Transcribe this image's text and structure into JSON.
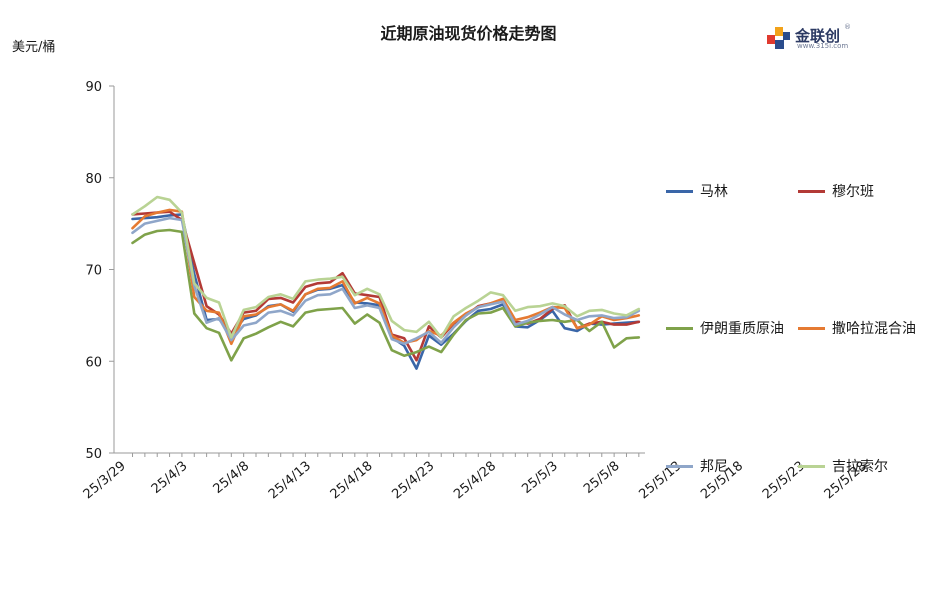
{
  "title": "近期原油现货价格走势图",
  "unit_label": "美元/桶",
  "logo": {
    "brand": "金联创",
    "site": "www.315i.com",
    "reg": "®"
  },
  "chart_data": {
    "type": "line",
    "title": "近期原油现货价格走势图",
    "ylabel": "美元/桶",
    "ylim": [
      50,
      90
    ],
    "yticks": [
      50,
      60,
      70,
      80,
      90
    ],
    "grid": false,
    "legend": "right",
    "x": [
      "25/3/28",
      "25/3/31",
      "25/4/1",
      "25/4/2",
      "25/4/3",
      "25/4/4",
      "25/4/7",
      "25/4/8",
      "25/4/9",
      "25/4/10",
      "25/4/11",
      "25/4/14",
      "25/4/15",
      "25/4/16",
      "25/4/17",
      "25/4/21",
      "25/4/22",
      "25/4/23",
      "25/4/24",
      "25/4/25",
      "25/4/28",
      "25/4/29",
      "25/4/30",
      "25/5/2",
      "25/5/5",
      "25/5/6",
      "25/5/7",
      "25/5/8",
      "25/5/9",
      "25/5/12",
      "25/5/13",
      "25/5/14",
      "25/5/15",
      "25/5/16",
      "25/5/19",
      "25/5/20",
      "25/5/21",
      "25/5/22",
      "25/5/23",
      "25/5/26",
      "25/5/27",
      "25/5/28"
    ],
    "xtick_labels": [
      {
        "label": "25/3/29",
        "pos": -1
      },
      {
        "label": "25/4/3",
        "pos": 4
      },
      {
        "label": "25/4/8",
        "pos": 9
      },
      {
        "label": "25/4/13",
        "pos": 14
      },
      {
        "label": "25/4/18",
        "pos": 19
      },
      {
        "label": "25/4/23",
        "pos": 24
      },
      {
        "label": "25/4/28",
        "pos": 29
      },
      {
        "label": "25/5/3",
        "pos": 34
      },
      {
        "label": "25/5/8",
        "pos": 39
      },
      {
        "label": "25/5/13",
        "pos": 44
      },
      {
        "label": "25/5/18",
        "pos": 49
      },
      {
        "label": "25/5/23",
        "pos": 54
      },
      {
        "label": "25/5/28",
        "pos": 59
      }
    ],
    "series": [
      {
        "name": "马林",
        "color": "#3a66a8",
        "values": [
          75.5,
          75.6,
          75.7,
          75.9,
          76.0,
          69.5,
          64.5,
          64.6,
          62.9,
          64.6,
          65.0,
          66.0,
          66.2,
          65.4,
          67.3,
          67.8,
          67.9,
          68.3,
          66.4,
          66.3,
          66.1,
          62.6,
          61.7,
          59.2,
          62.8,
          61.8,
          63.0,
          64.4,
          65.5,
          65.7,
          66.2,
          63.8,
          63.7,
          64.5,
          65.5,
          63.6,
          63.3,
          64.1,
          64.0,
          64.1,
          64.2,
          64.3
        ]
      },
      {
        "name": "穆尔班",
        "color": "#b33a36",
        "values": [
          76.0,
          76.1,
          76.2,
          76.3,
          75.4,
          70.7,
          66.0,
          65.1,
          63.0,
          65.3,
          65.5,
          66.8,
          66.9,
          66.4,
          68.1,
          68.5,
          68.6,
          69.6,
          67.4,
          67.2,
          67.0,
          62.9,
          62.5,
          60.1,
          63.8,
          62.6,
          64.1,
          65.0,
          66.0,
          66.3,
          66.6,
          64.3,
          64.1,
          64.6,
          65.7,
          66.1,
          63.6,
          64.1,
          64.3,
          64.0,
          64.0,
          64.3
        ]
      },
      {
        "name": "伊朗重质原油",
        "color": "#7fa24a",
        "values": [
          72.9,
          73.8,
          74.2,
          74.3,
          74.1,
          65.2,
          63.6,
          63.1,
          60.1,
          62.5,
          63.0,
          63.7,
          64.3,
          63.8,
          65.3,
          65.6,
          65.7,
          65.8,
          64.1,
          65.1,
          64.2,
          61.2,
          60.6,
          61.0,
          61.6,
          61.0,
          62.9,
          64.5,
          65.2,
          65.3,
          65.8,
          63.8,
          64.2,
          64.4,
          64.5,
          64.3,
          64.5,
          63.3,
          64.3,
          61.5,
          62.5,
          62.6
        ]
      },
      {
        "name": "撒哈拉混合油",
        "color": "#e57a32",
        "values": [
          74.5,
          75.8,
          76.2,
          76.5,
          76.3,
          67.0,
          65.5,
          65.3,
          61.9,
          64.9,
          65.1,
          65.9,
          66.2,
          65.5,
          67.3,
          67.9,
          68.0,
          68.7,
          66.3,
          66.9,
          66.3,
          62.8,
          62.0,
          62.3,
          63.3,
          62.8,
          64.2,
          65.2,
          65.9,
          66.3,
          66.8,
          64.5,
          64.8,
          65.3,
          65.9,
          65.8,
          63.6,
          64.0,
          64.9,
          64.5,
          64.7,
          65.0
        ]
      },
      {
        "name": "邦尼",
        "color": "#8fa6c9",
        "values": [
          74.0,
          75.0,
          75.3,
          75.6,
          75.4,
          68.2,
          64.2,
          64.7,
          62.3,
          63.9,
          64.2,
          65.3,
          65.5,
          65.0,
          66.6,
          67.2,
          67.3,
          67.9,
          65.8,
          66.1,
          65.8,
          62.4,
          61.9,
          62.5,
          63.2,
          62.0,
          63.7,
          65.0,
          65.9,
          66.2,
          66.5,
          64.0,
          64.4,
          65.1,
          65.9,
          65.1,
          64.5,
          64.9,
          65.0,
          64.7,
          64.8,
          65.5
        ]
      },
      {
        "name": "吉拉索尔",
        "color": "#b9d394",
        "values": [
          76.0,
          76.9,
          77.9,
          77.6,
          76.2,
          68.5,
          66.9,
          66.4,
          62.6,
          65.6,
          65.9,
          67.0,
          67.3,
          66.8,
          68.7,
          68.9,
          69.0,
          69.2,
          67.2,
          67.9,
          67.3,
          64.4,
          63.4,
          63.2,
          64.3,
          62.6,
          64.9,
          65.8,
          66.6,
          67.5,
          67.2,
          65.5,
          65.9,
          66.0,
          66.3,
          66.0,
          64.9,
          65.5,
          65.6,
          65.2,
          65.0,
          65.7
        ]
      }
    ]
  }
}
